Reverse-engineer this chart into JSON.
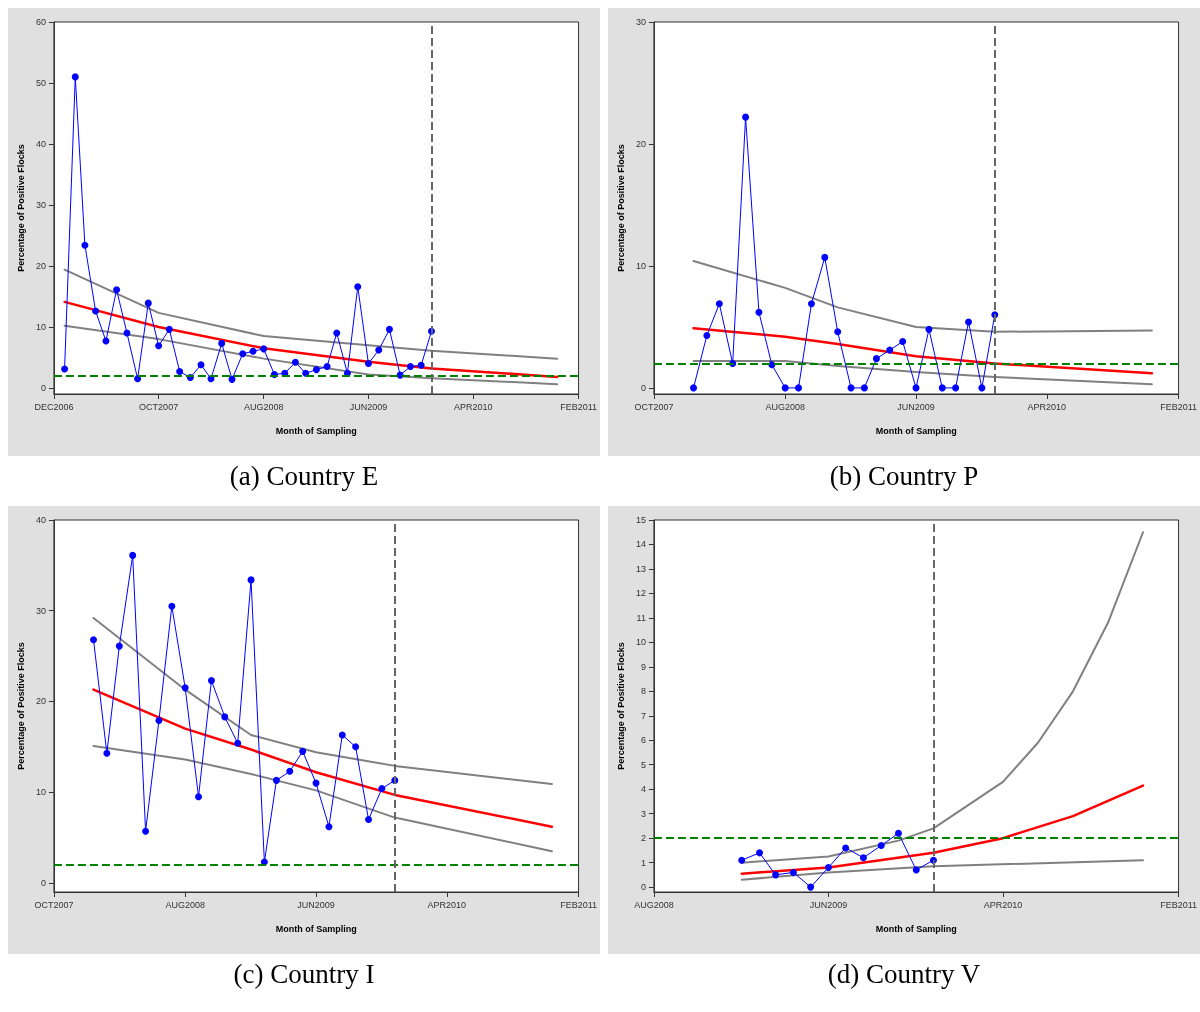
{
  "chart_data": [
    {
      "type": "line",
      "title": "(a) Country E",
      "xlabel": "Month of Sampling",
      "ylabel": "Percentage of Positive Flocks",
      "marker": "circle",
      "grid": false,
      "xlim": [
        "2006-12",
        "2011-02"
      ],
      "xticks": [
        {
          "value": "2006-12",
          "label": "DEC2006"
        },
        {
          "value": "2007-10",
          "label": "OCT2007"
        },
        {
          "value": "2008-08",
          "label": "AUG2008"
        },
        {
          "value": "2009-06",
          "label": "JUN2009"
        },
        {
          "value": "2010-04",
          "label": "APR2010"
        },
        {
          "value": "2011-02",
          "label": "FEB2011"
        }
      ],
      "ylim": [
        -1,
        60
      ],
      "yticks": [
        0,
        10,
        20,
        30,
        40,
        50,
        60
      ],
      "series": [
        {
          "color": "#0000ff",
          "x": [
            "2007-01",
            "2007-02",
            "2007-03",
            "2007-04",
            "2007-05",
            "2007-06",
            "2007-07",
            "2007-08",
            "2007-09",
            "2007-10",
            "2007-11",
            "2007-12",
            "2008-01",
            "2008-02",
            "2008-03",
            "2008-04",
            "2008-05",
            "2008-06",
            "2008-07",
            "2008-08",
            "2008-09",
            "2008-10",
            "2008-11",
            "2008-12",
            "2009-01",
            "2009-02",
            "2009-03",
            "2009-04",
            "2009-05",
            "2009-06",
            "2009-07",
            "2009-08",
            "2009-09",
            "2009-10",
            "2009-11",
            "2009-12"
          ],
          "values": [
            3.1,
            51,
            23.4,
            12.6,
            7.7,
            16.1,
            9.0,
            1.5,
            13.9,
            6.9,
            9.6,
            2.7,
            1.7,
            3.8,
            1.5,
            7.3,
            1.4,
            5.6,
            6.0,
            6.4,
            2.2,
            2.4,
            4.2,
            2.4,
            3.0,
            3.5,
            9.0,
            2.4,
            16.6,
            4.0,
            6.2,
            9.6,
            2.1,
            3.5,
            3.7,
            9.3
          ]
        },
        {
          "color": "#ff0000",
          "marker": "none",
          "x": [
            "2007-01",
            "2007-10",
            "2008-08",
            "2009-06",
            "2009-12",
            "2010-12"
          ],
          "values": [
            14.1,
            10.0,
            6.5,
            4.3,
            3.2,
            1.8
          ]
        },
        {
          "color": "#808080",
          "marker": "none",
          "x": [
            "2007-01",
            "2007-10",
            "2008-08",
            "2009-06",
            "2009-12",
            "2010-12"
          ],
          "values": [
            19.4,
            12.3,
            8.5,
            7.0,
            6.1,
            4.8
          ]
        },
        {
          "color": "#808080",
          "marker": "none",
          "x": [
            "2007-01",
            "2007-10",
            "2008-08",
            "2009-06",
            "2009-12",
            "2010-12"
          ],
          "values": [
            10.2,
            8.0,
            4.8,
            2.2,
            1.6,
            0.6
          ]
        }
      ],
      "ref_lines": [
        {
          "axis": "y",
          "value": 2,
          "color": "#008000",
          "line_style": "dashed"
        },
        {
          "axis": "x",
          "value": "2009-12",
          "color": "#666666",
          "line_style": "dashed"
        }
      ]
    },
    {
      "type": "line",
      "title": "(b) Country P",
      "xlabel": "Month of Sampling",
      "ylabel": "Percentage of Positive Flocks",
      "marker": "circle",
      "grid": false,
      "xlim": [
        "2007-10",
        "2011-02"
      ],
      "xticks": [
        {
          "value": "2007-10",
          "label": "OCT2007"
        },
        {
          "value": "2008-08",
          "label": "AUG2008"
        },
        {
          "value": "2009-06",
          "label": "JUN2009"
        },
        {
          "value": "2010-04",
          "label": "APR2010"
        },
        {
          "value": "2011-02",
          "label": "FEB2011"
        }
      ],
      "ylim": [
        -0.5,
        30
      ],
      "yticks": [
        0,
        10,
        20,
        30
      ],
      "series": [
        {
          "color": "#0000ff",
          "x": [
            "2008-01",
            "2008-02",
            "2008-03",
            "2008-04",
            "2008-05",
            "2008-06",
            "2008-07",
            "2008-08",
            "2008-09",
            "2008-10",
            "2008-11",
            "2008-12",
            "2009-01",
            "2009-02",
            "2009-03",
            "2009-04",
            "2009-05",
            "2009-06",
            "2009-07",
            "2009-08",
            "2009-09",
            "2009-10",
            "2009-11",
            "2009-12"
          ],
          "values": [
            0,
            4.3,
            6.9,
            2.0,
            22.2,
            6.2,
            1.9,
            0,
            0,
            6.9,
            10.7,
            4.6,
            0,
            0,
            2.4,
            3.1,
            3.8,
            0,
            4.8,
            0,
            0,
            5.4,
            0,
            6.0
          ]
        },
        {
          "color": "#ff0000",
          "marker": "none",
          "x": [
            "2008-01",
            "2008-08",
            "2008-12",
            "2009-06",
            "2009-12",
            "2010-12"
          ],
          "values": [
            4.9,
            4.2,
            3.6,
            2.6,
            2.0,
            1.2
          ]
        },
        {
          "color": "#808080",
          "marker": "none",
          "x": [
            "2008-01",
            "2008-08",
            "2008-12",
            "2009-06",
            "2009-12",
            "2010-12"
          ],
          "values": [
            10.4,
            8.2,
            6.6,
            5.0,
            4.6,
            4.7
          ]
        },
        {
          "color": "#808080",
          "marker": "none",
          "x": [
            "2008-01",
            "2008-08",
            "2008-12",
            "2009-06",
            "2009-12",
            "2010-12"
          ],
          "values": [
            2.2,
            2.2,
            1.8,
            1.3,
            0.9,
            0.3
          ]
        }
      ],
      "ref_lines": [
        {
          "axis": "y",
          "value": 2,
          "color": "#008000",
          "line_style": "dashed"
        },
        {
          "axis": "x",
          "value": "2009-12",
          "color": "#666666",
          "line_style": "dashed"
        }
      ]
    },
    {
      "type": "line",
      "title": "(c) Country I",
      "xlabel": "Month of Sampling",
      "ylabel": "Percentage of Positive Flocks",
      "marker": "circle",
      "grid": false,
      "xlim": [
        "2007-10",
        "2011-02"
      ],
      "xticks": [
        {
          "value": "2007-10",
          "label": "OCT2007"
        },
        {
          "value": "2008-08",
          "label": "AUG2008"
        },
        {
          "value": "2009-06",
          "label": "JUN2009"
        },
        {
          "value": "2010-04",
          "label": "APR2010"
        },
        {
          "value": "2011-02",
          "label": "FEB2011"
        }
      ],
      "ylim": [
        -1,
        40
      ],
      "yticks": [
        0,
        10,
        20,
        30,
        40
      ],
      "series": [
        {
          "color": "#0000ff",
          "x": [
            "2008-01",
            "2008-02",
            "2008-03",
            "2008-04",
            "2008-05",
            "2008-06",
            "2008-07",
            "2008-08",
            "2008-09",
            "2008-10",
            "2008-11",
            "2008-12",
            "2009-01",
            "2009-02",
            "2009-03",
            "2009-04",
            "2009-05",
            "2009-06",
            "2009-07",
            "2009-08",
            "2009-09",
            "2009-10",
            "2009-11",
            "2009-12"
          ],
          "values": [
            26.8,
            14.3,
            26.1,
            36.1,
            5.7,
            17.9,
            30.5,
            21.5,
            9.5,
            22.3,
            18.3,
            15.4,
            33.4,
            2.3,
            11.3,
            12.3,
            14.5,
            11.0,
            6.2,
            16.3,
            15.0,
            7.0,
            10.4,
            11.3
          ]
        },
        {
          "color": "#ff0000",
          "marker": "none",
          "x": [
            "2008-01",
            "2008-08",
            "2009-01",
            "2009-06",
            "2009-12",
            "2010-12"
          ],
          "values": [
            21.3,
            17.0,
            14.7,
            12.2,
            9.7,
            6.2
          ]
        },
        {
          "color": "#808080",
          "marker": "none",
          "x": [
            "2008-01",
            "2008-08",
            "2009-01",
            "2009-06",
            "2009-12",
            "2010-12"
          ],
          "values": [
            29.2,
            21.3,
            16.3,
            14.4,
            12.9,
            10.9
          ]
        },
        {
          "color": "#808080",
          "marker": "none",
          "x": [
            "2008-01",
            "2008-08",
            "2009-01",
            "2009-06",
            "2009-12",
            "2010-12"
          ],
          "values": [
            15.1,
            13.6,
            12.0,
            10.2,
            7.2,
            3.5
          ]
        }
      ],
      "ref_lines": [
        {
          "axis": "y",
          "value": 2,
          "color": "#008000",
          "line_style": "dashed"
        },
        {
          "axis": "x",
          "value": "2009-12",
          "color": "#666666",
          "line_style": "dashed"
        }
      ]
    },
    {
      "type": "line",
      "title": "(d) Country V",
      "xlabel": "Month of Sampling",
      "ylabel": "Percentage of Positive Flocks",
      "marker": "circle",
      "grid": false,
      "xlim": [
        "2008-08",
        "2011-02"
      ],
      "xticks": [
        {
          "value": "2008-08",
          "label": "AUG2008"
        },
        {
          "value": "2009-06",
          "label": "JUN2009"
        },
        {
          "value": "2010-04",
          "label": "APR2010"
        },
        {
          "value": "2011-02",
          "label": "FEB2011"
        }
      ],
      "ylim": [
        -0.2,
        15
      ],
      "yticks": [
        0,
        1,
        2,
        3,
        4,
        5,
        6,
        7,
        8,
        9,
        10,
        11,
        12,
        13,
        14,
        15
      ],
      "series": [
        {
          "color": "#0000ff",
          "x": [
            "2009-01",
            "2009-02",
            "2009-03",
            "2009-04",
            "2009-05",
            "2009-06",
            "2009-07",
            "2009-08",
            "2009-09",
            "2009-10",
            "2009-11",
            "2009-12"
          ],
          "values": [
            1.1,
            1.4,
            0.5,
            0.6,
            0,
            0.8,
            1.6,
            1.2,
            1.7,
            2.2,
            0.7,
            1.1
          ]
        },
        {
          "color": "#ff0000",
          "marker": "none",
          "x": [
            "2009-01",
            "2009-06",
            "2009-12",
            "2010-04",
            "2010-08",
            "2010-12"
          ],
          "values": [
            0.55,
            0.8,
            1.4,
            2.0,
            2.9,
            4.15
          ]
        },
        {
          "color": "#808080",
          "marker": "none",
          "x": [
            "2009-01",
            "2009-06",
            "2009-10",
            "2009-12",
            "2010-04",
            "2010-06",
            "2010-08",
            "2010-10",
            "2010-12"
          ],
          "values": [
            1.0,
            1.25,
            1.9,
            2.4,
            4.3,
            5.9,
            8.0,
            10.8,
            14.5
          ]
        },
        {
          "color": "#808080",
          "marker": "none",
          "x": [
            "2009-01",
            "2009-06",
            "2009-12",
            "2010-12"
          ],
          "values": [
            0.3,
            0.6,
            0.85,
            1.1
          ]
        }
      ],
      "ref_lines": [
        {
          "axis": "y",
          "value": 2,
          "color": "#008000",
          "line_style": "dashed"
        },
        {
          "axis": "x",
          "value": "2009-12",
          "color": "#666666",
          "line_style": "dashed"
        }
      ]
    }
  ]
}
